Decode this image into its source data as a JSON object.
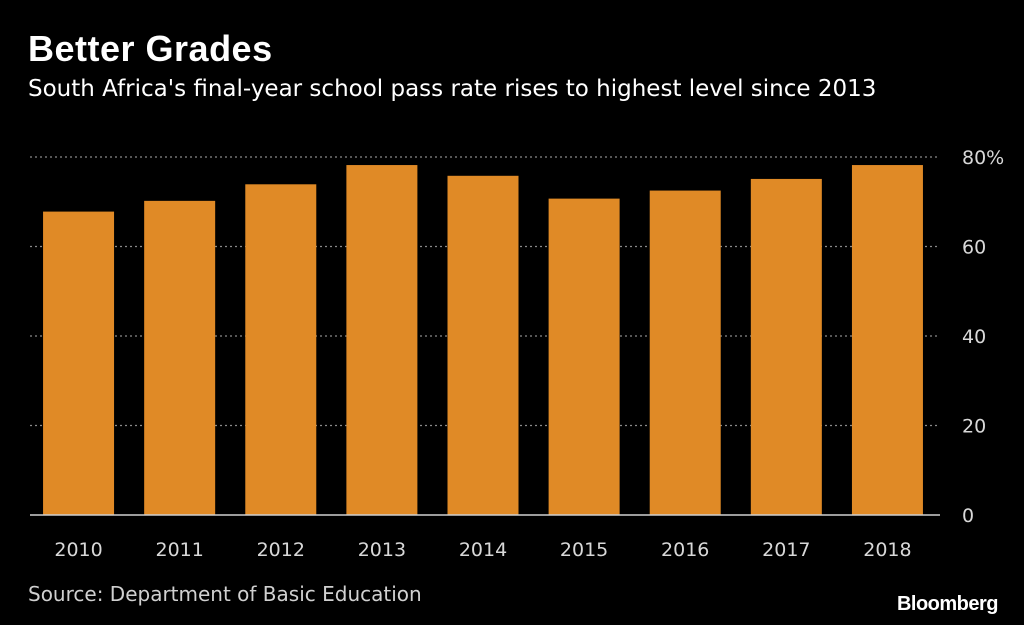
{
  "chart_data": {
    "type": "bar",
    "title": "Better Grades",
    "subtitle": "South Africa's final-year school pass rate rises to highest level since 2013",
    "categories": [
      "2010",
      "2011",
      "2012",
      "2013",
      "2014",
      "2015",
      "2016",
      "2017",
      "2018"
    ],
    "values": [
      67.8,
      70.2,
      73.9,
      78.2,
      75.8,
      70.7,
      72.5,
      75.1,
      78.2
    ],
    "ylim": [
      0,
      80
    ],
    "yticks": [
      0,
      20,
      40,
      60,
      80
    ],
    "ytick_labels": [
      "0",
      "20",
      "40",
      "60",
      "80%"
    ],
    "y_axis_side": "right",
    "grid": true,
    "bar_color": "#e08a26",
    "xlabel": "",
    "ylabel": ""
  },
  "source": "Source: Department of Basic Education",
  "brand": "Bloomberg"
}
